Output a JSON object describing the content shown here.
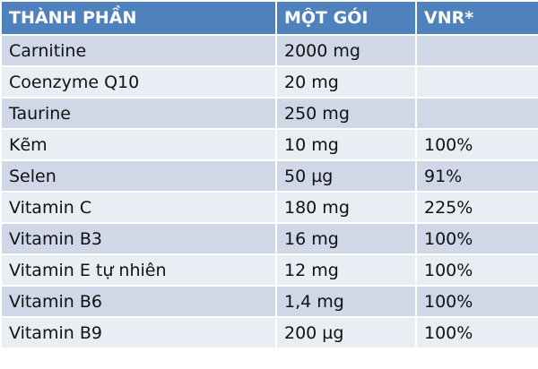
{
  "table": {
    "header": [
      "THÀNH PHẦN",
      "MỘT GÓI",
      "VNR*"
    ],
    "rows": [
      [
        "Carnitine",
        "2000 mg"
      ],
      [
        "Coenzyme Q10",
        "20 mg"
      ],
      [
        "Taurine",
        "250 mg"
      ],
      [
        "Kẽm",
        "10 mg",
        "100%"
      ],
      [
        "Selen",
        "50 µg",
        "91%"
      ],
      [
        "Vitamin C",
        "180 mg",
        "225%"
      ],
      [
        "Vitamin B3",
        "16 mg",
        "100%"
      ],
      [
        "Vitamin E tự nhiên",
        "12 mg",
        "100%"
      ],
      [
        "Vitamin B6",
        "1,4 mg",
        "100%"
      ],
      [
        "Vitamin B9",
        "200 µg",
        "100%"
      ]
    ]
  }
}
